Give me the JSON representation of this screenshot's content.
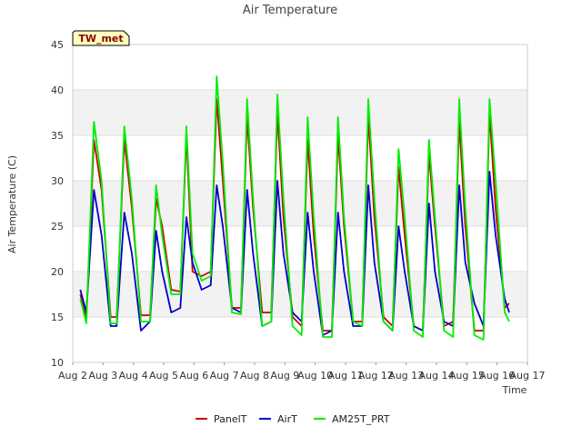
{
  "chart_data": {
    "type": "line",
    "title": "Air Temperature",
    "xlabel": "Time",
    "ylabel": "Air Temperature (C)",
    "badge": "TW_met",
    "ylim": [
      10,
      45
    ],
    "xlim": [
      2,
      17
    ],
    "yticks": [
      "10",
      "15",
      "20",
      "25",
      "30",
      "35",
      "40",
      "45"
    ],
    "xticks": [
      "Aug 2",
      "Aug 3",
      "Aug 4",
      "Aug 5",
      "Aug 6",
      "Aug 7",
      "Aug 8",
      "Aug 9",
      "Aug 10",
      "Aug 11",
      "Aug 12",
      "Aug 13",
      "Aug 14",
      "Aug 15",
      "Aug 16",
      "Aug 17"
    ],
    "grid": true,
    "legend_position": "bottom",
    "series": [
      {
        "name": "PanelT",
        "color": "#cc0000",
        "x": [
          2.25,
          2.45,
          2.7,
          2.95,
          3.25,
          3.45,
          3.7,
          3.95,
          4.25,
          4.55,
          4.75,
          4.95,
          5.25,
          5.55,
          5.75,
          5.95,
          6.25,
          6.55,
          6.75,
          6.95,
          7.25,
          7.55,
          7.75,
          7.95,
          8.25,
          8.55,
          8.75,
          8.95,
          9.25,
          9.55,
          9.75,
          9.95,
          10.25,
          10.55,
          10.75,
          10.95,
          11.25,
          11.55,
          11.75,
          11.95,
          12.25,
          12.55,
          12.75,
          12.95,
          13.25,
          13.55,
          13.75,
          13.95,
          14.25,
          14.55,
          14.75,
          14.95,
          15.25,
          15.55,
          15.75,
          15.95,
          16.25,
          16.4
        ],
        "y": [
          17.5,
          15.0,
          34.5,
          29.0,
          15.0,
          15.0,
          34.5,
          27.0,
          15.2,
          15.2,
          28.0,
          25.0,
          18.0,
          17.8,
          35.0,
          20.0,
          19.5,
          20.0,
          39.0,
          30.0,
          16.0,
          16.0,
          37.0,
          27.0,
          15.5,
          15.5,
          37.5,
          26.0,
          15.0,
          14.0,
          34.5,
          24.0,
          13.5,
          13.5,
          35.0,
          25.0,
          14.5,
          14.5,
          37.0,
          26.0,
          15.0,
          14.0,
          31.5,
          24.0,
          14.0,
          13.5,
          33.0,
          25.0,
          14.0,
          14.5,
          36.5,
          25.0,
          13.5,
          13.5,
          37.5,
          27.0,
          16.0,
          16.5
        ]
      },
      {
        "name": "AirT",
        "color": "#0000cc",
        "x": [
          2.25,
          2.45,
          2.7,
          2.95,
          3.25,
          3.45,
          3.7,
          3.95,
          4.25,
          4.55,
          4.75,
          4.95,
          5.25,
          5.55,
          5.75,
          5.95,
          6.25,
          6.55,
          6.75,
          6.95,
          7.25,
          7.55,
          7.75,
          7.95,
          8.25,
          8.55,
          8.75,
          8.95,
          9.25,
          9.55,
          9.75,
          9.95,
          10.25,
          10.55,
          10.75,
          10.95,
          11.25,
          11.55,
          11.75,
          11.95,
          12.25,
          12.55,
          12.75,
          12.95,
          13.25,
          13.55,
          13.75,
          13.95,
          14.25,
          14.55,
          14.75,
          14.95,
          15.25,
          15.55,
          15.75,
          15.95,
          16.25,
          16.4
        ],
        "y": [
          18.0,
          15.5,
          29.0,
          24.0,
          14.0,
          14.0,
          26.5,
          22.0,
          13.5,
          14.5,
          24.5,
          20.0,
          15.5,
          16.0,
          26.0,
          21.0,
          18.0,
          18.5,
          29.5,
          25.0,
          16.0,
          15.5,
          29.0,
          22.0,
          14.0,
          14.5,
          30.0,
          22.0,
          15.5,
          14.5,
          26.5,
          20.0,
          13.0,
          13.5,
          26.5,
          20.0,
          14.0,
          14.0,
          29.5,
          21.0,
          14.5,
          13.5,
          25.0,
          20.0,
          14.0,
          13.5,
          27.5,
          20.0,
          14.5,
          14.0,
          29.5,
          21.0,
          16.5,
          14.0,
          31.0,
          24.0,
          17.0,
          15.5
        ]
      },
      {
        "name": "AM25T_PRT",
        "color": "#00ee00",
        "x": [
          2.25,
          2.45,
          2.7,
          2.95,
          3.25,
          3.45,
          3.7,
          3.95,
          4.25,
          4.55,
          4.75,
          4.95,
          5.25,
          5.55,
          5.75,
          5.95,
          6.25,
          6.55,
          6.75,
          6.95,
          7.25,
          7.55,
          7.75,
          7.95,
          8.25,
          8.55,
          8.75,
          8.95,
          9.25,
          9.55,
          9.75,
          9.95,
          10.25,
          10.55,
          10.75,
          10.95,
          11.25,
          11.55,
          11.75,
          11.95,
          12.25,
          12.55,
          12.75,
          12.95,
          13.25,
          13.55,
          13.75,
          13.95,
          14.25,
          14.55,
          14.75,
          14.95,
          15.25,
          15.55,
          15.75,
          15.95,
          16.25,
          16.4
        ],
        "y": [
          17.0,
          14.3,
          36.5,
          30.0,
          14.3,
          14.3,
          36.0,
          28.0,
          14.5,
          14.5,
          29.5,
          24.0,
          17.5,
          17.5,
          36.0,
          22.0,
          19.0,
          19.5,
          41.5,
          32.0,
          15.5,
          15.3,
          39.0,
          28.0,
          14.0,
          14.5,
          39.5,
          28.0,
          14.0,
          13.0,
          37.0,
          26.0,
          12.8,
          12.8,
          37.0,
          26.0,
          14.5,
          14.0,
          39.0,
          28.0,
          14.5,
          13.5,
          33.5,
          26.0,
          13.5,
          12.8,
          34.5,
          26.0,
          13.5,
          12.8,
          39.0,
          27.0,
          13.0,
          12.5,
          39.0,
          30.0,
          15.5,
          14.5
        ]
      }
    ]
  }
}
